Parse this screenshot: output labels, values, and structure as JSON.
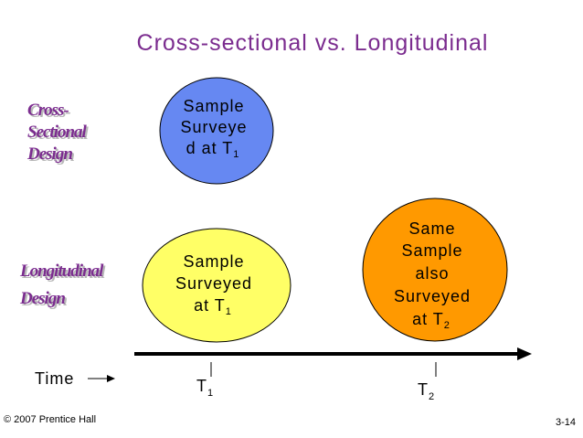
{
  "header": {
    "title": "Cross-sectional vs. Longitudinal"
  },
  "cross_sectional": {
    "label": [
      "Cross-",
      "Sectional",
      "Design"
    ],
    "ellipse": {
      "lines": [
        "Sample",
        "Surveye",
        "d at T"
      ],
      "subscript": "1"
    }
  },
  "longitudinal": {
    "label": [
      "Longitudinal",
      "Design"
    ],
    "ellipses": [
      {
        "lines": [
          "Sample",
          "Surveyed",
          "at T"
        ],
        "subscript": "1"
      },
      {
        "lines": [
          "Same",
          "Sample",
          "also",
          "Surveyed",
          "at T"
        ],
        "subscript": "2"
      }
    ]
  },
  "timeline": {
    "label": "Time",
    "ticks": [
      {
        "text": "T",
        "subscript": "1"
      },
      {
        "text": "T",
        "subscript": "2"
      }
    ]
  },
  "footer": {
    "copyright": "© 2007 Prentice Hall",
    "page": "3-14"
  }
}
